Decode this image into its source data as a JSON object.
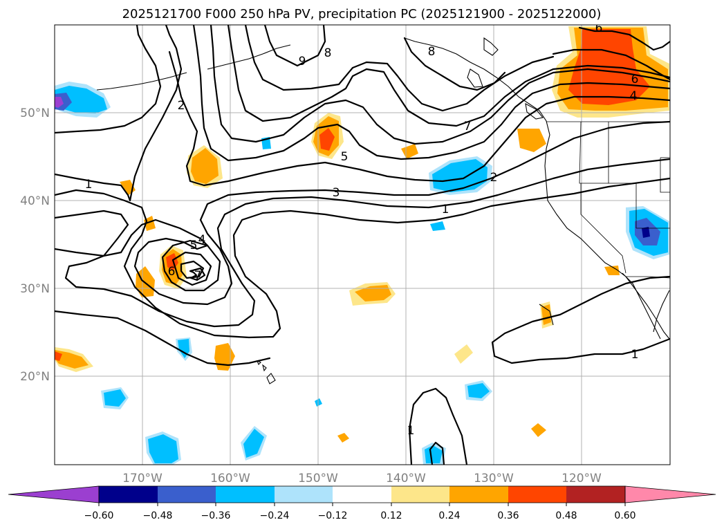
{
  "chart_data": {
    "type": "contour-map",
    "title": "2025121700 F000 250 hPa PV, precipitation PC (2025121900 - 2025122000)",
    "lon_range": [
      -180,
      -110
    ],
    "lat_range": [
      10,
      60
    ],
    "lat_ticks": [
      "50°N",
      "40°N",
      "30°N",
      "20°N"
    ],
    "lon_ticks": [
      "170°W",
      "160°W",
      "150°W",
      "140°W",
      "130°W",
      "120°W"
    ],
    "colorbar": {
      "ticks": [
        "−0.60",
        "−0.48",
        "−0.36",
        "−0.24",
        "−0.12",
        "0.12",
        "0.24",
        "0.36",
        "0.48",
        "0.60"
      ],
      "colors": [
        "#9b3fd0",
        "#00008b",
        "#3a5fcd",
        "#00bfff",
        "#aee3fb",
        "#ffffff",
        "#fde68a",
        "#ffa500",
        "#ff4500",
        "#b22222",
        "#ff88aa"
      ],
      "extend": "both"
    },
    "pv_contour_labels": [
      {
        "text": "1",
        "lon": -176,
        "lat": 39.5
      },
      {
        "text": "2",
        "lon": -165.5,
        "lat": 52
      },
      {
        "text": "3",
        "lon": -147.5,
        "lat": 40.5
      },
      {
        "text": "4",
        "lon": -162.5,
        "lat": 35.5
      },
      {
        "text": "5",
        "lon": -163.5,
        "lat": 34.5
      },
      {
        "text": "5",
        "lon": -148,
        "lat": 44.5
      },
      {
        "text": "6",
        "lon": -164.5,
        "lat": 32
      },
      {
        "text": "7",
        "lon": -163,
        "lat": 31
      },
      {
        "text": "8",
        "lon": -149,
        "lat": 57
      },
      {
        "text": "9",
        "lon": -152,
        "lat": 56
      },
      {
        "text": "8",
        "lon": -140,
        "lat": 57.5
      },
      {
        "text": "7",
        "lon": -133.5,
        "lat": 49
      },
      {
        "text": "2",
        "lon": -131,
        "lat": 42.5
      },
      {
        "text": "1",
        "lon": -138,
        "lat": 37
      },
      {
        "text": "1",
        "lon": -122.5,
        "lat": 22.5
      },
      {
        "text": "1",
        "lon": -140,
        "lat": 14
      },
      {
        "text": "6",
        "lon": -119.5,
        "lat": 55
      },
      {
        "text": "4",
        "lon": -119.5,
        "lat": 52
      },
      {
        "text": "6",
        "lon": -121.5,
        "lat": 59.5
      }
    ]
  }
}
